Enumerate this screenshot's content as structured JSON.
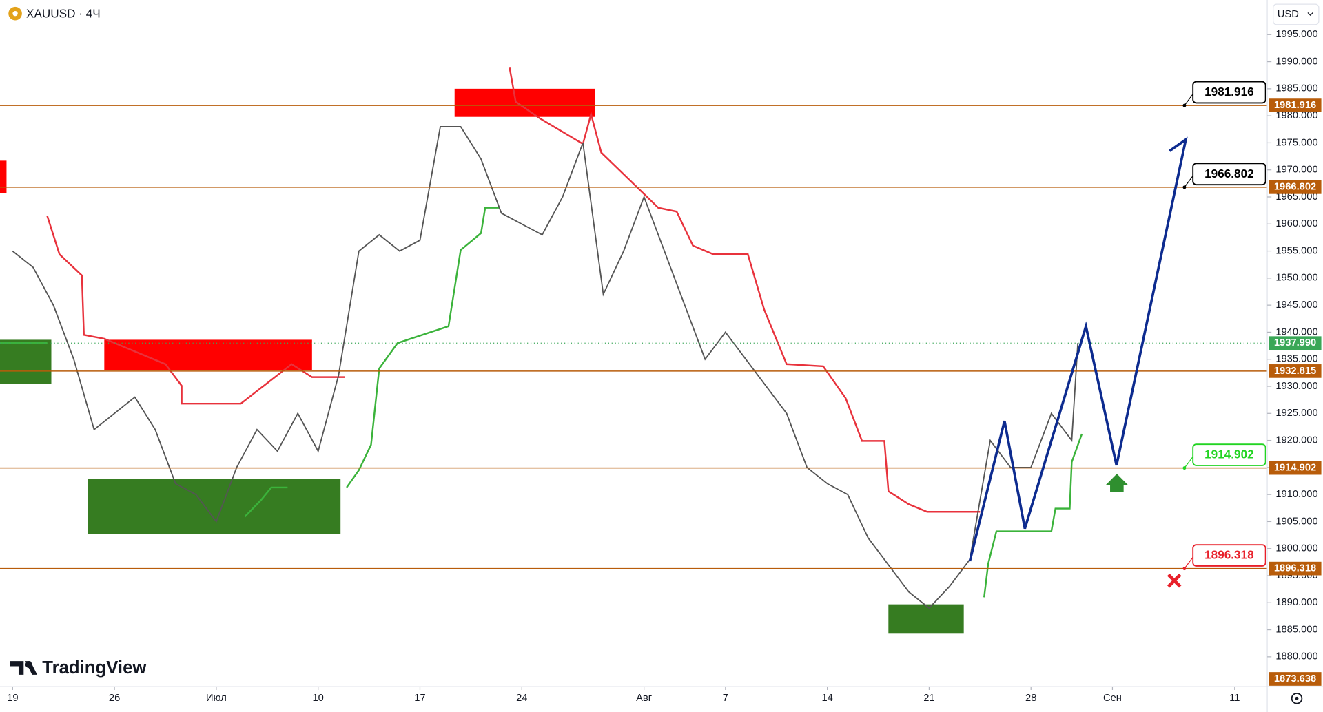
{
  "chart_data": {
    "type": "line",
    "title": "XAUUSD · 4Ч",
    "currency": "USD",
    "brand": "TradingView",
    "color": "#555555",
    "x": [
      0,
      1,
      2,
      3,
      4,
      5,
      6,
      7,
      8,
      9,
      10,
      11,
      12,
      13,
      14,
      15,
      16,
      17,
      18,
      19,
      20,
      21,
      22,
      23,
      24,
      25,
      26,
      27,
      28,
      29,
      30,
      31,
      32,
      33,
      34,
      35,
      36,
      37,
      38,
      39,
      40,
      41,
      42,
      43,
      44,
      45,
      46,
      47,
      48,
      49,
      50,
      51,
      52,
      52.3
    ],
    "values": [
      1955,
      1952,
      1945,
      1935,
      1922,
      1925,
      1928,
      1922,
      1912,
      1910,
      1905,
      1915,
      1922,
      1918,
      1925,
      1918,
      1932,
      1955,
      1958,
      1955,
      1957,
      1978,
      1978,
      1972,
      1962,
      1960,
      1958,
      1965,
      1975,
      1947,
      1955,
      1965,
      1955,
      1945,
      1935,
      1940,
      1935,
      1930,
      1925,
      1915,
      1912,
      1910,
      1902,
      1897,
      1892,
      1889,
      1893,
      1898,
      1920,
      1915,
      1915,
      1925,
      1920,
      1938
    ],
    "xlim": [
      -0.62,
      61.6
    ],
    "ylim": [
      1874.5,
      2001.4
    ],
    "xticks": [
      {
        "value": 0,
        "label": "19"
      },
      {
        "value": 5,
        "label": "26"
      },
      {
        "value": 10,
        "label": "Июл"
      },
      {
        "value": 15,
        "label": "10"
      },
      {
        "value": 20,
        "label": "17"
      },
      {
        "value": 25,
        "label": "24"
      },
      {
        "value": 31,
        "label": "Авг"
      },
      {
        "value": 35,
        "label": "7"
      },
      {
        "value": 40,
        "label": "14"
      },
      {
        "value": 45,
        "label": "21"
      },
      {
        "value": 50,
        "label": "28"
      },
      {
        "value": 54,
        "label": "Сен"
      },
      {
        "value": 60,
        "label": "11"
      }
    ],
    "yticks": [
      {
        "value": 1880,
        "label": "1880.000"
      },
      {
        "value": 1885,
        "label": "1885.000"
      },
      {
        "value": 1890,
        "label": "1890.000"
      },
      {
        "value": 1895,
        "label": "1895.000"
      },
      {
        "value": 1900,
        "label": "1900.000"
      },
      {
        "value": 1905,
        "label": "1905.000"
      },
      {
        "value": 1910,
        "label": "1910.000"
      },
      {
        "value": 1915,
        "label": "1915.000"
      },
      {
        "value": 1920,
        "label": "1920.000"
      },
      {
        "value": 1925,
        "label": "1925.000"
      },
      {
        "value": 1930,
        "label": "1930.000"
      },
      {
        "value": 1935,
        "label": "1935.000"
      },
      {
        "value": 1940,
        "label": "1940.000"
      },
      {
        "value": 1945,
        "label": "1945.000"
      },
      {
        "value": 1950,
        "label": "1950.000"
      },
      {
        "value": 1955,
        "label": "1955.000"
      },
      {
        "value": 1960,
        "label": "1960.000"
      },
      {
        "value": 1965,
        "label": "1965.000"
      },
      {
        "value": 1970,
        "label": "1970.000"
      },
      {
        "value": 1975,
        "label": "1975.000"
      },
      {
        "value": 1980,
        "label": "1980.000"
      },
      {
        "value": 1985,
        "label": "1985.000"
      },
      {
        "value": 1990,
        "label": "1990.000"
      },
      {
        "value": 1995,
        "label": "1995.000"
      }
    ],
    "level_color": "#b85c0a",
    "levels": [
      {
        "value": 1981.916,
        "label": "1981.916",
        "callout_color": "#000000"
      },
      {
        "value": 1966.802,
        "label": "1966.802",
        "callout_color": "#000000"
      },
      {
        "value": 1932.815,
        "label": "1932.815"
      },
      {
        "value": 1914.902,
        "label": "1914.902",
        "callout_color": "#22d422"
      },
      {
        "value": 1896.318,
        "label": "1896.318",
        "callout_color": "#e8202a"
      }
    ],
    "last_price": {
      "value": 1937.99,
      "label": "1937.990",
      "color": "#3aa757"
    },
    "axis_low": {
      "value": 1873.638,
      "label": "1873.638"
    },
    "zones": [
      {
        "x": [
          21.7,
          28.6
        ],
        "y": [
          1979.8,
          1985.0
        ],
        "color": "#ff0000"
      },
      {
        "x": [
          4.5,
          14.7
        ],
        "y": [
          1933.0,
          1938.6
        ],
        "color": "#ff0000"
      },
      {
        "x": [
          -0.62,
          -0.3
        ],
        "y": [
          1965.7,
          1971.7
        ],
        "color": "#ff0000"
      },
      {
        "x": [
          3.7,
          16.1
        ],
        "y": [
          1902.7,
          1912.9
        ],
        "color": "#367c21"
      },
      {
        "x": [
          43.0,
          46.7
        ],
        "y": [
          1884.4,
          1889.7
        ],
        "color": "#367c21"
      },
      {
        "x": [
          -0.62,
          1.9
        ],
        "y": [
          1930.5,
          1938.6
        ],
        "color": "#367c21"
      }
    ],
    "trends": [
      {
        "color": "#e8323c",
        "x": [
          1.7,
          2.3,
          3.4,
          3.5,
          4.5,
          7.5,
          8.3,
          8.3,
          11.2,
          13.7,
          14.7,
          16.3
        ],
        "values": [
          1961.5,
          1954.4,
          1950.5,
          1939.5,
          1938.8,
          1934.1,
          1930.1,
          1926.8,
          1926.8,
          1934.1,
          1931.7,
          1931.7
        ]
      },
      {
        "color": "#e8323c",
        "x": [
          24.4,
          24.7,
          25.9,
          28.0,
          28.4,
          28.9,
          31.7,
          32.6,
          33.4,
          34.4,
          36.1,
          36.9,
          38.0,
          39.8,
          40.9,
          41.7,
          42.8,
          43.0,
          44.0,
          44.9,
          47.5
        ],
        "values": [
          1988.9,
          1982.6,
          1979.5,
          1974.8,
          1980.3,
          1973.2,
          1963.0,
          1962.3,
          1956.0,
          1954.4,
          1954.4,
          1944.2,
          1934.1,
          1933.7,
          1927.8,
          1919.9,
          1919.9,
          1910.6,
          1908.2,
          1906.8,
          1906.8
        ]
      },
      {
        "color": "#3bb33b",
        "x": [
          -0.62,
          1.7
        ],
        "values": [
          1938.0,
          1938.0
        ]
      },
      {
        "color": "#3bb33b",
        "x": [
          11.4,
          12.2,
          12.7,
          13.5
        ],
        "values": [
          1905.9,
          1909.0,
          1911.3,
          1911.3
        ]
      },
      {
        "color": "#3bb33b",
        "x": [
          16.4,
          17.0,
          17.6,
          18.0,
          18.9,
          21.4,
          22.0,
          23.0,
          23.2,
          23.9
        ],
        "values": [
          1911.3,
          1914.5,
          1919.2,
          1933.3,
          1938.0,
          1941.1,
          1955.2,
          1958.3,
          1963.0,
          1963.0
        ]
      },
      {
        "color": "#3bb33b",
        "x": [
          47.7,
          47.9,
          48.3,
          51.0,
          51.2,
          51.9,
          52.0,
          52.5
        ],
        "values": [
          1891.0,
          1897.2,
          1903.2,
          1903.2,
          1907.4,
          1907.4,
          1916.0,
          1921.2
        ]
      }
    ],
    "projection": {
      "color": "#0d2b8f",
      "x": [
        47.0,
        48.7,
        49.7,
        52.7,
        54.2,
        57.6,
        56.8
      ],
      "values": [
        1897.7,
        1923.6,
        1903.7,
        1941.1,
        1915.4,
        1975.6,
        1973.5
      ]
    }
  }
}
